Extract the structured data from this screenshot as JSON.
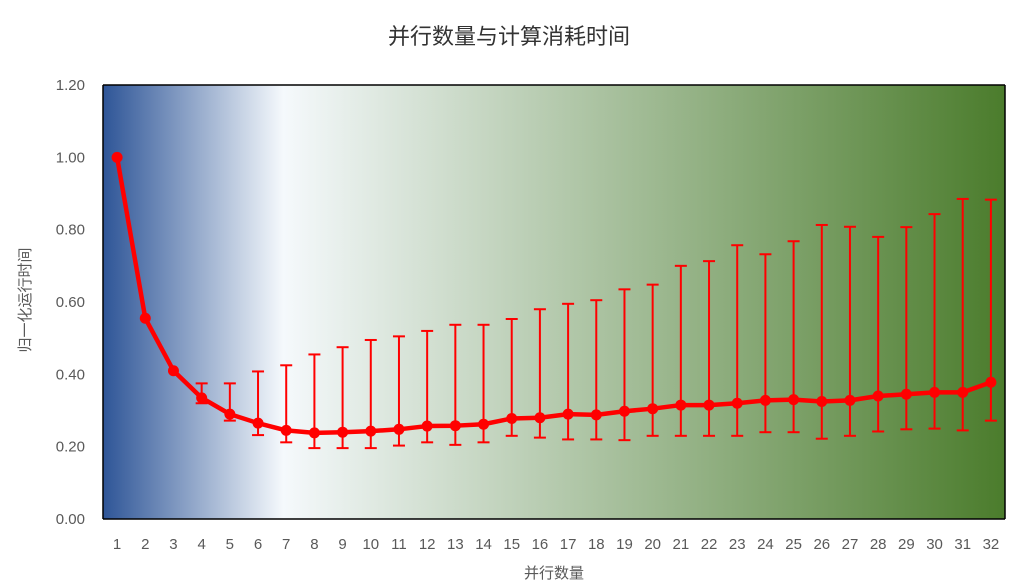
{
  "chart_data": {
    "type": "line",
    "title": "并行数量与计算消耗时间",
    "xlabel": "并行数量",
    "ylabel": "归一化运行时间",
    "categories": [
      "1",
      "2",
      "3",
      "4",
      "5",
      "6",
      "7",
      "8",
      "9",
      "10",
      "11",
      "12",
      "13",
      "14",
      "15",
      "16",
      "17",
      "18",
      "19",
      "20",
      "21",
      "22",
      "23",
      "24",
      "25",
      "26",
      "27",
      "28",
      "29",
      "30",
      "31",
      "32"
    ],
    "series": [
      {
        "values": [
          1.0,
          0.555,
          0.41,
          0.335,
          0.29,
          0.265,
          0.245,
          0.238,
          0.24,
          0.243,
          0.248,
          0.257,
          0.258,
          0.262,
          0.278,
          0.28,
          0.29,
          0.288,
          0.298,
          0.305,
          0.315,
          0.315,
          0.32,
          0.328,
          0.33,
          0.325,
          0.328,
          0.34,
          0.345,
          0.35,
          0.35,
          0.378
        ],
        "error_upper": [
          1.0,
          0.555,
          0.41,
          0.375,
          0.375,
          0.408,
          0.425,
          0.455,
          0.475,
          0.495,
          0.505,
          0.52,
          0.537,
          0.537,
          0.553,
          0.58,
          0.595,
          0.605,
          0.635,
          0.648,
          0.7,
          0.713,
          0.757,
          0.732,
          0.768,
          0.813,
          0.808,
          0.78,
          0.807,
          0.843,
          0.885,
          0.883
        ],
        "error_lower": [
          1.0,
          0.555,
          0.41,
          0.32,
          0.272,
          0.232,
          0.212,
          0.196,
          0.196,
          0.196,
          0.203,
          0.212,
          0.205,
          0.212,
          0.23,
          0.225,
          0.22,
          0.22,
          0.218,
          0.23,
          0.23,
          0.23,
          0.23,
          0.24,
          0.24,
          0.222,
          0.23,
          0.242,
          0.248,
          0.25,
          0.245,
          0.272
        ]
      }
    ],
    "ylim": [
      0,
      1.2
    ],
    "yticks": [
      "0.00",
      "0.20",
      "0.40",
      "0.60",
      "0.80",
      "1.00",
      "1.20"
    ],
    "grid": false,
    "legend": "none",
    "colors": {
      "series": "#ff0000",
      "background_left": "#2e5597",
      "background_mid": "#f5f9fc",
      "background_right": "#4b7c2c",
      "axis": "#000000"
    }
  }
}
